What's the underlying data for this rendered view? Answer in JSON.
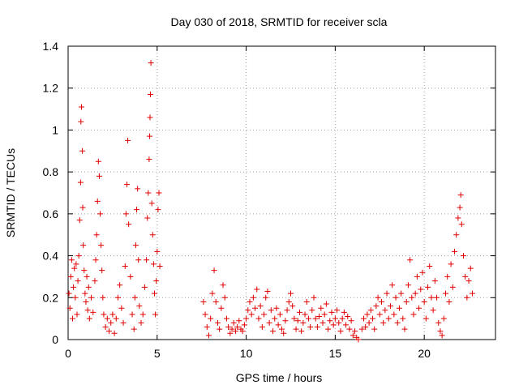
{
  "chart_data": {
    "type": "scatter",
    "title": "Day 030 of 2018, SRMTID for receiver scla",
    "xlabel": "GPS time / hours",
    "ylabel": "SRMTID / TECUs",
    "xlim": [
      0,
      24
    ],
    "ylim": [
      0,
      1.4
    ],
    "x_ticks": [
      0,
      5,
      10,
      15,
      20
    ],
    "y_ticks": [
      0,
      0.2,
      0.4,
      0.6,
      0.8,
      1,
      1.2,
      1.4
    ],
    "x_tick_labels": [
      "0",
      "5",
      "10",
      "15",
      "20"
    ],
    "y_tick_labels": [
      "0",
      "0.2",
      "0.4",
      "0.6",
      "0.8",
      "1",
      "1.2",
      "1.4"
    ],
    "grid": true,
    "marker": "+",
    "color": "#e00000",
    "series": [
      {
        "name": "SRMTID",
        "points": [
          [
            0.05,
            0.22
          ],
          [
            0.1,
            0.15
          ],
          [
            0.15,
            0.3
          ],
          [
            0.2,
            0.38
          ],
          [
            0.25,
            0.1
          ],
          [
            0.3,
            0.25
          ],
          [
            0.35,
            0.34
          ],
          [
            0.4,
            0.2
          ],
          [
            0.45,
            0.36
          ],
          [
            0.5,
            0.12
          ],
          [
            0.55,
            0.28
          ],
          [
            0.6,
            0.4
          ],
          [
            0.65,
            0.57
          ],
          [
            0.7,
            0.75
          ],
          [
            0.72,
            1.04
          ],
          [
            0.75,
            1.11
          ],
          [
            0.8,
            0.9
          ],
          [
            0.82,
            0.63
          ],
          [
            0.85,
            0.45
          ],
          [
            0.9,
            0.33
          ],
          [
            0.95,
            0.22
          ],
          [
            1.0,
            0.18
          ],
          [
            1.05,
            0.3
          ],
          [
            1.1,
            0.14
          ],
          [
            1.15,
            0.25
          ],
          [
            1.2,
            0.1
          ],
          [
            1.3,
            0.2
          ],
          [
            1.4,
            0.13
          ],
          [
            1.5,
            0.28
          ],
          [
            1.55,
            0.38
          ],
          [
            1.6,
            0.5
          ],
          [
            1.65,
            0.66
          ],
          [
            1.7,
            0.85
          ],
          [
            1.75,
            0.78
          ],
          [
            1.8,
            0.6
          ],
          [
            1.85,
            0.45
          ],
          [
            1.9,
            0.33
          ],
          [
            1.95,
            0.2
          ],
          [
            2.0,
            0.12
          ],
          [
            2.1,
            0.06
          ],
          [
            2.2,
            0.1
          ],
          [
            2.3,
            0.04
          ],
          [
            2.4,
            0.08
          ],
          [
            2.5,
            0.12
          ],
          [
            2.6,
            0.03
          ],
          [
            2.7,
            0.1
          ],
          [
            2.8,
            0.2
          ],
          [
            2.9,
            0.26
          ],
          [
            3.0,
            0.15
          ],
          [
            3.1,
            0.08
          ],
          [
            3.2,
            0.35
          ],
          [
            3.25,
            0.6
          ],
          [
            3.3,
            0.74
          ],
          [
            3.35,
            0.95
          ],
          [
            3.4,
            0.55
          ],
          [
            3.5,
            0.3
          ],
          [
            3.6,
            0.12
          ],
          [
            3.7,
            0.05
          ],
          [
            3.75,
            0.2
          ],
          [
            3.8,
            0.45
          ],
          [
            3.85,
            0.62
          ],
          [
            3.9,
            0.72
          ],
          [
            3.95,
            0.38
          ],
          [
            4.0,
            0.16
          ],
          [
            4.1,
            0.08
          ],
          [
            4.2,
            0.12
          ],
          [
            4.3,
            0.25
          ],
          [
            4.4,
            0.38
          ],
          [
            4.45,
            0.58
          ],
          [
            4.5,
            0.7
          ],
          [
            4.55,
            0.86
          ],
          [
            4.58,
            0.97
          ],
          [
            4.6,
            1.06
          ],
          [
            4.62,
            1.17
          ],
          [
            4.65,
            1.32
          ],
          [
            4.7,
            0.65
          ],
          [
            4.75,
            0.5
          ],
          [
            4.8,
            0.36
          ],
          [
            4.85,
            0.22
          ],
          [
            4.9,
            0.12
          ],
          [
            4.95,
            0.28
          ],
          [
            5.0,
            0.42
          ],
          [
            5.05,
            0.62
          ],
          [
            5.1,
            0.7
          ],
          [
            5.15,
            0.35
          ],
          [
            7.6,
            0.18
          ],
          [
            7.7,
            0.12
          ],
          [
            7.8,
            0.06
          ],
          [
            7.9,
            0.02
          ],
          [
            8.0,
            0.1
          ],
          [
            8.1,
            0.22
          ],
          [
            8.2,
            0.33
          ],
          [
            8.3,
            0.18
          ],
          [
            8.4,
            0.08
          ],
          [
            8.5,
            0.05
          ],
          [
            8.6,
            0.15
          ],
          [
            8.7,
            0.26
          ],
          [
            8.8,
            0.2
          ],
          [
            8.9,
            0.1
          ],
          [
            9.0,
            0.06
          ],
          [
            9.1,
            0.03
          ],
          [
            9.2,
            0.05
          ],
          [
            9.3,
            0.08
          ],
          [
            9.4,
            0.04
          ],
          [
            9.5,
            0.06
          ],
          [
            9.6,
            0.09
          ],
          [
            9.7,
            0.05
          ],
          [
            9.8,
            0.04
          ],
          [
            9.9,
            0.07
          ],
          [
            10.0,
            0.1
          ],
          [
            10.1,
            0.14
          ],
          [
            10.2,
            0.18
          ],
          [
            10.3,
            0.12
          ],
          [
            10.4,
            0.2
          ],
          [
            10.5,
            0.15
          ],
          [
            10.6,
            0.24
          ],
          [
            10.7,
            0.1
          ],
          [
            10.8,
            0.16
          ],
          [
            10.9,
            0.06
          ],
          [
            11.0,
            0.12
          ],
          [
            11.1,
            0.2
          ],
          [
            11.2,
            0.23
          ],
          [
            11.3,
            0.08
          ],
          [
            11.4,
            0.14
          ],
          [
            11.5,
            0.04
          ],
          [
            11.6,
            0.1
          ],
          [
            11.7,
            0.15
          ],
          [
            11.8,
            0.07
          ],
          [
            11.9,
            0.12
          ],
          [
            12.0,
            0.05
          ],
          [
            12.1,
            0.03
          ],
          [
            12.2,
            0.09
          ],
          [
            12.3,
            0.14
          ],
          [
            12.4,
            0.18
          ],
          [
            12.5,
            0.22
          ],
          [
            12.6,
            0.16
          ],
          [
            12.7,
            0.1
          ],
          [
            12.8,
            0.05
          ],
          [
            12.9,
            0.09
          ],
          [
            13.0,
            0.13
          ],
          [
            13.1,
            0.04
          ],
          [
            13.2,
            0.08
          ],
          [
            13.3,
            0.12
          ],
          [
            13.4,
            0.18
          ],
          [
            13.5,
            0.1
          ],
          [
            13.6,
            0.06
          ],
          [
            13.7,
            0.14
          ],
          [
            13.8,
            0.2
          ],
          [
            13.9,
            0.1
          ],
          [
            14.0,
            0.06
          ],
          [
            14.1,
            0.11
          ],
          [
            14.2,
            0.15
          ],
          [
            14.3,
            0.08
          ],
          [
            14.4,
            0.12
          ],
          [
            14.5,
            0.17
          ],
          [
            14.6,
            0.05
          ],
          [
            14.7,
            0.09
          ],
          [
            14.8,
            0.13
          ],
          [
            14.9,
            0.07
          ],
          [
            15.0,
            0.1
          ],
          [
            15.1,
            0.14
          ],
          [
            15.2,
            0.08
          ],
          [
            15.3,
            0.04
          ],
          [
            15.4,
            0.1
          ],
          [
            15.5,
            0.13
          ],
          [
            15.6,
            0.07
          ],
          [
            15.7,
            0.11
          ],
          [
            15.8,
            0.05
          ],
          [
            15.9,
            0.09
          ],
          [
            16.0,
            0.02
          ],
          [
            16.1,
            0.04
          ],
          [
            16.2,
            0.01
          ],
          [
            16.3,
            0.0
          ],
          [
            16.5,
            0.05
          ],
          [
            16.6,
            0.1
          ],
          [
            16.7,
            0.06
          ],
          [
            16.8,
            0.12
          ],
          [
            16.9,
            0.08
          ],
          [
            17.0,
            0.14
          ],
          [
            17.1,
            0.1
          ],
          [
            17.2,
            0.05
          ],
          [
            17.3,
            0.16
          ],
          [
            17.4,
            0.2
          ],
          [
            17.5,
            0.12
          ],
          [
            17.6,
            0.18
          ],
          [
            17.7,
            0.08
          ],
          [
            17.8,
            0.14
          ],
          [
            17.9,
            0.22
          ],
          [
            18.0,
            0.1
          ],
          [
            18.1,
            0.16
          ],
          [
            18.2,
            0.26
          ],
          [
            18.3,
            0.12
          ],
          [
            18.4,
            0.2
          ],
          [
            18.5,
            0.08
          ],
          [
            18.6,
            0.15
          ],
          [
            18.7,
            0.22
          ],
          [
            18.8,
            0.1
          ],
          [
            18.9,
            0.05
          ],
          [
            19.0,
            0.18
          ],
          [
            19.1,
            0.26
          ],
          [
            19.2,
            0.38
          ],
          [
            19.3,
            0.2
          ],
          [
            19.4,
            0.12
          ],
          [
            19.5,
            0.22
          ],
          [
            19.6,
            0.3
          ],
          [
            19.7,
            0.15
          ],
          [
            19.8,
            0.24
          ],
          [
            19.9,
            0.32
          ],
          [
            20.0,
            0.18
          ],
          [
            20.1,
            0.1
          ],
          [
            20.2,
            0.25
          ],
          [
            20.3,
            0.35
          ],
          [
            20.4,
            0.2
          ],
          [
            20.5,
            0.14
          ],
          [
            20.6,
            0.28
          ],
          [
            20.7,
            0.2
          ],
          [
            20.8,
            0.08
          ],
          [
            20.9,
            0.04
          ],
          [
            21.0,
            0.02
          ],
          [
            21.1,
            0.1
          ],
          [
            21.2,
            0.22
          ],
          [
            21.3,
            0.3
          ],
          [
            21.4,
            0.18
          ],
          [
            21.5,
            0.36
          ],
          [
            21.6,
            0.25
          ],
          [
            21.7,
            0.42
          ],
          [
            21.8,
            0.5
          ],
          [
            21.9,
            0.58
          ],
          [
            22.0,
            0.63
          ],
          [
            22.05,
            0.69
          ],
          [
            22.1,
            0.55
          ],
          [
            22.2,
            0.4
          ],
          [
            22.3,
            0.3
          ],
          [
            22.4,
            0.2
          ],
          [
            22.5,
            0.28
          ],
          [
            22.6,
            0.34
          ],
          [
            22.7,
            0.22
          ]
        ]
      }
    ]
  }
}
